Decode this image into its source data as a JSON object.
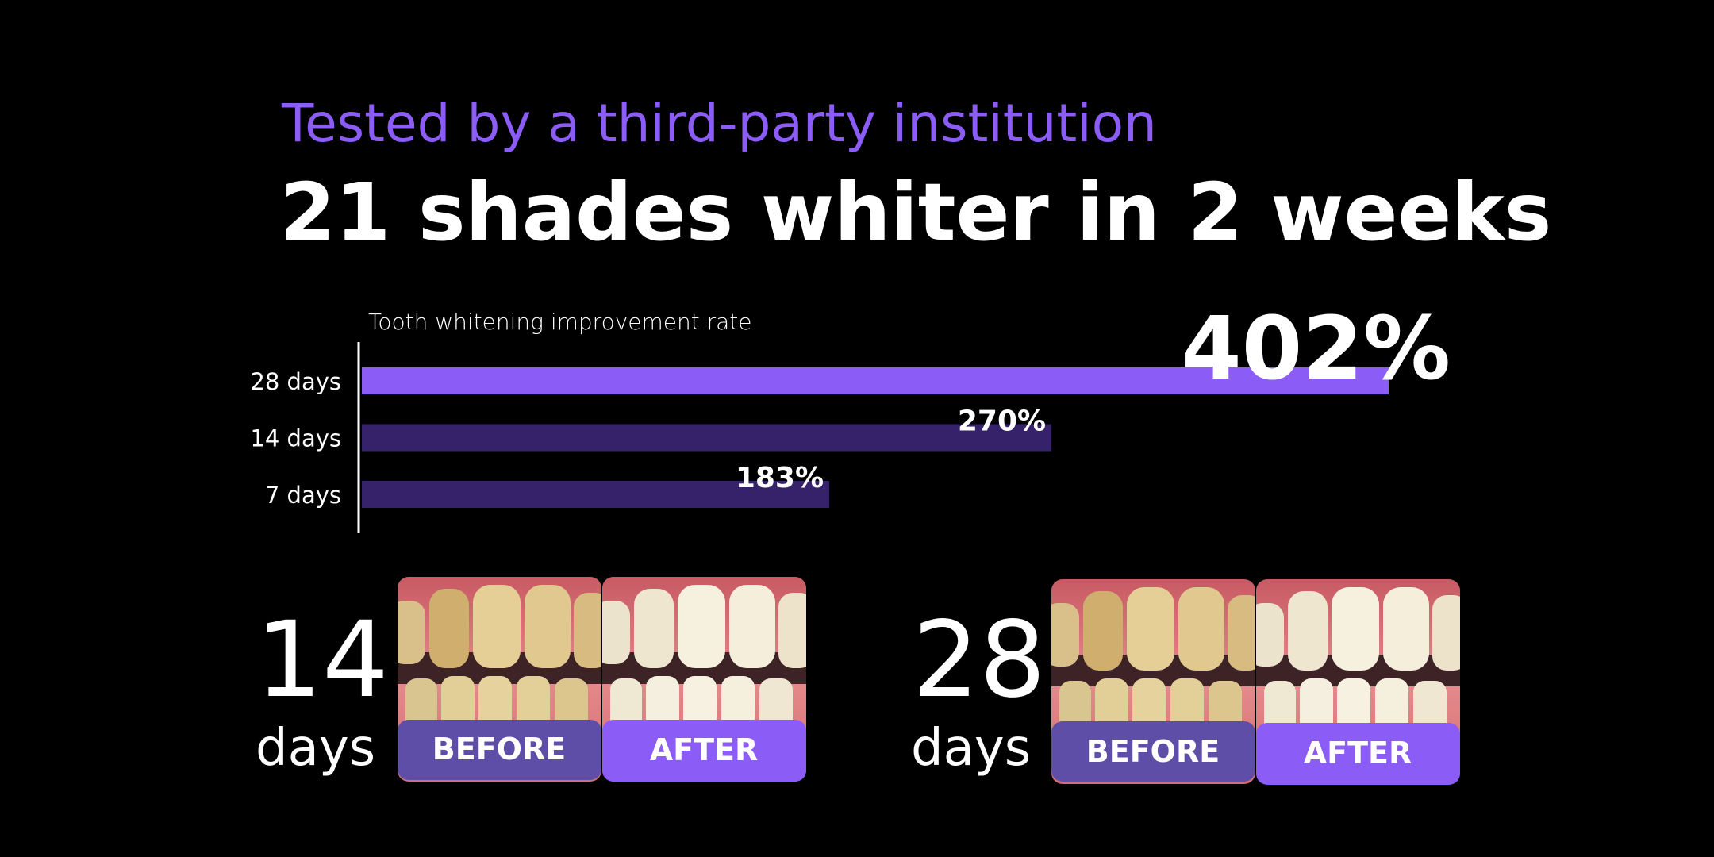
{
  "header": {
    "subtitle": "Tested by a third-party institution",
    "title": "21 shades whiter in 2 weeks"
  },
  "chart_data": {
    "type": "bar",
    "orientation": "horizontal",
    "title": "Tooth whitening improvement rate",
    "categories": [
      "28 days",
      "14 days",
      "7 days"
    ],
    "values": [
      402,
      270,
      183
    ],
    "value_labels": [
      "402%",
      "270%",
      "183%"
    ],
    "colors": [
      "#8b5cf6",
      "#35226b",
      "#35226b"
    ]
  },
  "comparisons": [
    {
      "number": "14",
      "unit": "days",
      "before": "BEFORE",
      "after": "AFTER"
    },
    {
      "number": "28",
      "unit": "days",
      "before": "BEFORE",
      "after": "AFTER"
    }
  ]
}
